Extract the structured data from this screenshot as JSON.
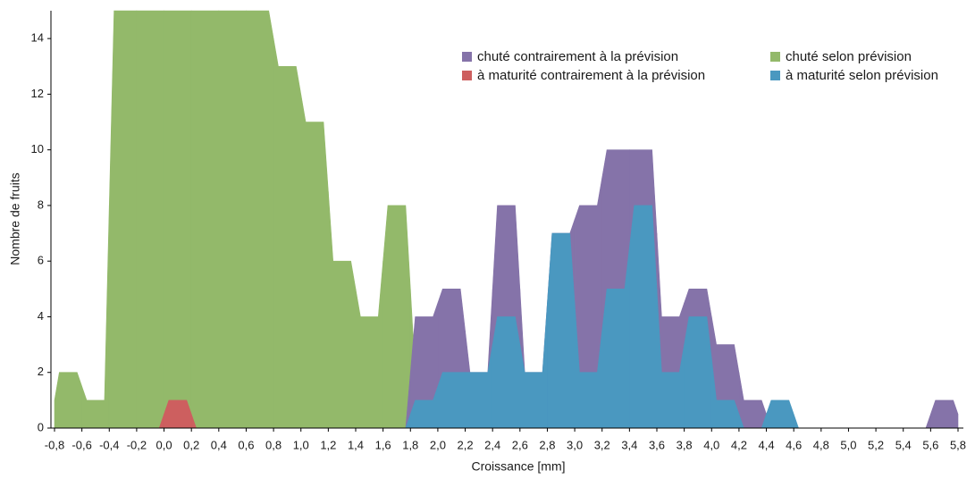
{
  "chart_data": {
    "type": "area",
    "x_label": "Croissance [mm]",
    "y_label": "Nombre de fruits",
    "x": [
      -0.7,
      -0.5,
      -0.3,
      -0.1,
      0.1,
      0.3,
      0.5,
      0.7,
      0.9,
      1.1,
      1.3,
      1.5,
      1.7,
      1.9,
      2.1,
      2.3,
      2.5,
      2.7,
      2.9,
      3.1,
      3.3,
      3.5,
      3.7,
      3.9,
      4.1,
      4.3,
      4.5,
      4.7,
      4.9,
      5.1,
      5.3,
      5.5,
      5.7
    ],
    "series": [
      {
        "name": "chuté selon prévision",
        "color": "#93b96a",
        "values": [
          2,
          1,
          15,
          15,
          15,
          15,
          15,
          15,
          13,
          11,
          6,
          4,
          8,
          2,
          0,
          0,
          0,
          0,
          0,
          0,
          0,
          0,
          0,
          0,
          0,
          0,
          0,
          0,
          0,
          0,
          0,
          0,
          0
        ]
      },
      {
        "name": "à maturité contrairement à la prévision",
        "color": "#cd5f5f",
        "values": [
          0,
          0,
          0,
          0,
          1,
          0,
          0,
          0,
          0,
          0,
          0,
          0,
          0,
          0,
          0,
          0,
          0,
          0,
          0,
          0,
          0,
          0,
          0,
          0,
          0,
          0,
          0,
          0,
          0,
          0,
          0,
          0,
          0
        ]
      },
      {
        "name": "chuté contrairement à la prévision",
        "color": "#8573a9",
        "values": [
          0,
          0,
          0,
          0,
          0,
          0,
          0,
          0,
          0,
          0,
          0,
          0,
          0,
          4,
          5,
          2,
          8,
          2,
          7,
          8,
          10,
          10,
          4,
          5,
          3,
          1,
          0,
          0,
          0,
          0,
          0,
          0,
          1
        ]
      },
      {
        "name": "à maturité selon prévision",
        "color": "#4a98c0",
        "values": [
          0,
          0,
          0,
          0,
          0,
          0,
          0,
          0,
          0,
          0,
          0,
          0,
          0,
          1,
          2,
          2,
          4,
          2,
          7,
          2,
          5,
          8,
          2,
          4,
          1,
          0,
          1,
          0,
          0,
          0,
          0,
          0,
          0
        ]
      }
    ],
    "legend_order": [
      2,
      0,
      1,
      3
    ],
    "xlim": [
      -0.8,
      5.8
    ],
    "ylim": [
      0,
      15
    ],
    "yticks": [
      0,
      2,
      4,
      6,
      8,
      10,
      12,
      14
    ],
    "xticks": [
      {
        "value": -0.8,
        "label": "-0,8"
      },
      {
        "value": -0.6,
        "label": "-0,6"
      },
      {
        "value": -0.4,
        "label": "-0,4"
      },
      {
        "value": -0.2,
        "label": "-0,2"
      },
      {
        "value": 0,
        "label": "0,0"
      },
      {
        "value": 0.2,
        "label": "0,2"
      },
      {
        "value": 0.4,
        "label": "0,4"
      },
      {
        "value": 0.6,
        "label": "0,6"
      },
      {
        "value": 0.8,
        "label": "0,8"
      },
      {
        "value": 1.0,
        "label": "1,0"
      },
      {
        "value": 1.2,
        "label": "1,2"
      },
      {
        "value": 1.4,
        "label": "1,4"
      },
      {
        "value": 1.6,
        "label": "1,6"
      },
      {
        "value": 1.8,
        "label": "1,8"
      },
      {
        "value": 2.0,
        "label": "2,0"
      },
      {
        "value": 2.2,
        "label": "2,2"
      },
      {
        "value": 2.4,
        "label": "2,4"
      },
      {
        "value": 2.6,
        "label": "2,6"
      },
      {
        "value": 2.8,
        "label": "2,8"
      },
      {
        "value": 3.0,
        "label": "3,0"
      },
      {
        "value": 3.2,
        "label": "3,2"
      },
      {
        "value": 3.4,
        "label": "3,4"
      },
      {
        "value": 3.6,
        "label": "3,6"
      },
      {
        "value": 3.8,
        "label": "3,8"
      },
      {
        "value": 4.0,
        "label": "4,0"
      },
      {
        "value": 4.2,
        "label": "4,2"
      },
      {
        "value": 4.4,
        "label": "4,4"
      },
      {
        "value": 4.6,
        "label": "4,6"
      },
      {
        "value": 4.8,
        "label": "4,8"
      },
      {
        "value": 5.0,
        "label": "5,0"
      },
      {
        "value": 5.2,
        "label": "5,2"
      },
      {
        "value": 5.4,
        "label": "5,4"
      },
      {
        "value": 5.6,
        "label": "5,6"
      },
      {
        "value": 5.8,
        "label": "5,8"
      }
    ]
  }
}
